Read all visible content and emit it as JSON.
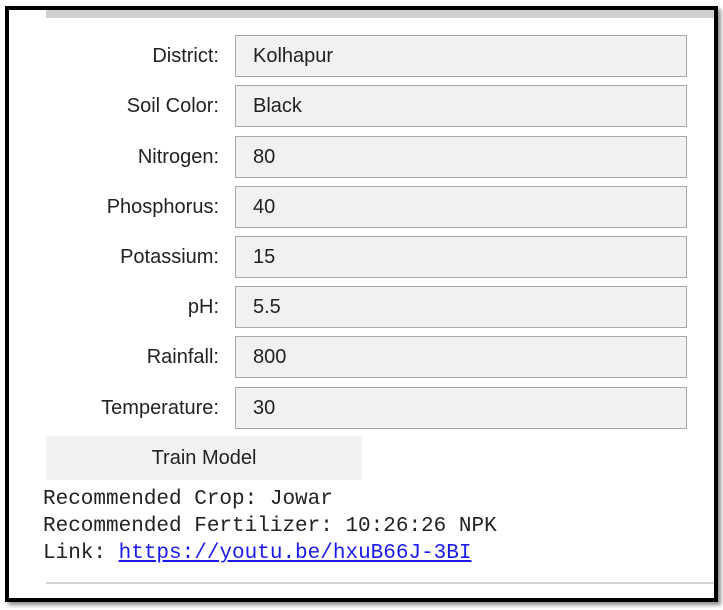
{
  "form": {
    "fields": [
      {
        "label": "District:",
        "value": "Kolhapur"
      },
      {
        "label": "Soil Color:",
        "value": "Black"
      },
      {
        "label": "Nitrogen:",
        "value": "80"
      },
      {
        "label": "Phosphorus:",
        "value": "40"
      },
      {
        "label": "Potassium:",
        "value": "15"
      },
      {
        "label": "pH:",
        "value": "5.5"
      },
      {
        "label": "Rainfall:",
        "value": "800"
      },
      {
        "label": "Temperature:",
        "value": "30"
      }
    ],
    "train_button_label": "Train Model"
  },
  "output": {
    "crop_line": "Recommended Crop: Jowar",
    "fertilizer_line": "Recommended Fertilizer: 10:26:26 NPK",
    "link_label": "Link: ",
    "link_url": "https://youtu.be/hxuB66J-3BI"
  },
  "colors": {
    "input_background": "#f1f1f1",
    "button_background": "#f2f2f2",
    "link": "#1a1aee"
  }
}
